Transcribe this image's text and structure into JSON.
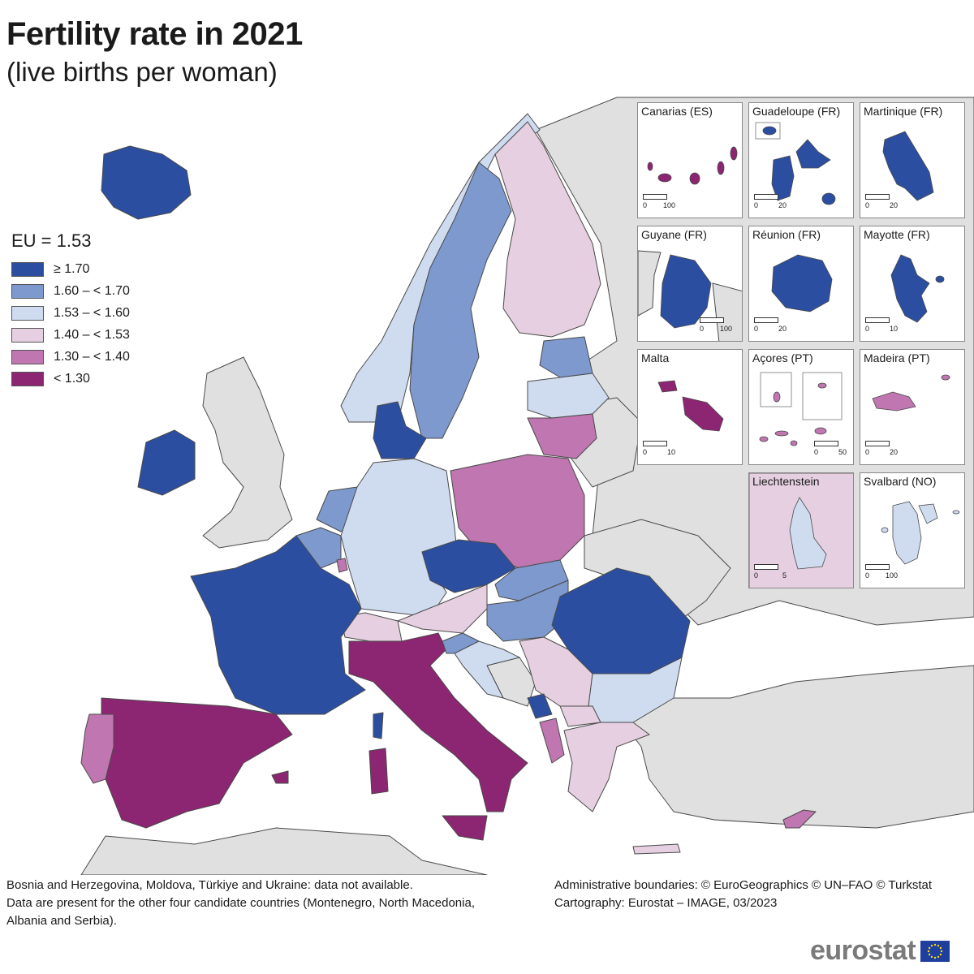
{
  "title": "Fertility rate in 2021",
  "subtitle": "(live births per woman)",
  "legend": {
    "heading": "EU = 1.53",
    "items": [
      {
        "label": "≥ 1.70",
        "color": "#2c4ea0"
      },
      {
        "label": "1.60 – < 1.70",
        "color": "#7d99cd"
      },
      {
        "label": "1.53 – < 1.60",
        "color": "#cfdcf0"
      },
      {
        "label": "1.40 – < 1.53",
        "color": "#e5cfe0"
      },
      {
        "label": "1.30 – < 1.40",
        "color": "#c076b0"
      },
      {
        "label": "< 1.30",
        "color": "#8c2572"
      }
    ]
  },
  "colors": {
    "no_data": "#e0e0e0",
    "sea": "#ffffff",
    "border": "#4a4a4a",
    "logo_gray": "#7a7a7a",
    "eu_flag_blue": "#1f3f9e",
    "eu_flag_star": "#ffdd00"
  },
  "insets": [
    {
      "name": "Canarias (ES)",
      "scale": [
        "0",
        "100"
      ]
    },
    {
      "name": "Guadeloupe (FR)",
      "scale": [
        "0",
        "20"
      ]
    },
    {
      "name": "Martinique (FR)",
      "scale": [
        "0",
        "20"
      ]
    },
    {
      "name": "Guyane (FR)",
      "scale": [
        "0",
        "100"
      ]
    },
    {
      "name": "Réunion (FR)",
      "scale": [
        "0",
        "20"
      ]
    },
    {
      "name": "Mayotte (FR)",
      "scale": [
        "0",
        "10"
      ]
    },
    {
      "name": "Malta",
      "scale": [
        "0",
        "10"
      ]
    },
    {
      "name": "Açores (PT)",
      "scale": [
        "0",
        "50"
      ]
    },
    {
      "name": "Madeira (PT)",
      "scale": [
        "0",
        "20"
      ]
    },
    {
      "name": "Liechtenstein",
      "scale": [
        "0",
        "5"
      ]
    },
    {
      "name": "Svalbard (NO)",
      "scale": [
        "0",
        "100"
      ]
    }
  ],
  "footnote": {
    "line1": "Bosnia and Herzegovina, Moldova, Türkiye and Ukraine: data not available.",
    "line2": "Data are present for the other four candidate countries (Montenegro, North Macedonia, Albania and Serbia)."
  },
  "credits": {
    "line1": "Administrative boundaries: © EuroGeographics © UN–FAO © Turkstat",
    "line2": "Cartography: Eurostat – IMAGE, 03/2023"
  },
  "logo": "eurostat"
}
